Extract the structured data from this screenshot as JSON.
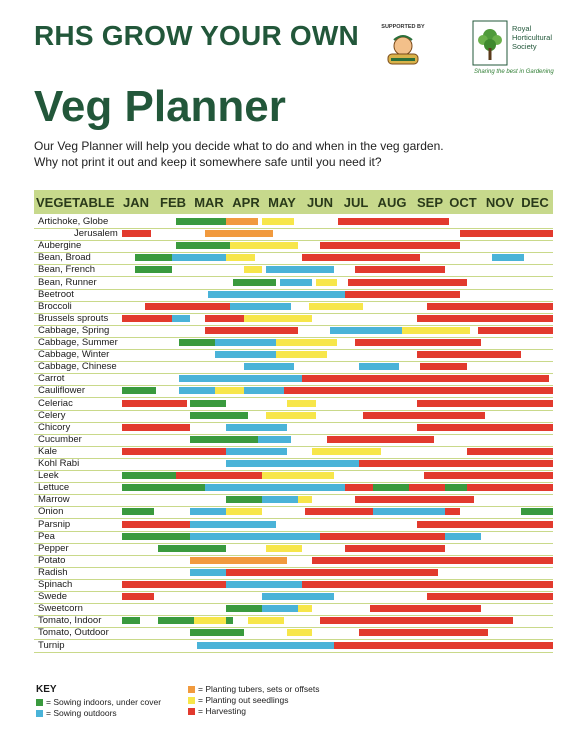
{
  "header": {
    "title": "RHS GROW YOUR OWN",
    "supported_by": "SUPPORTED BY",
    "rhs_name": [
      "Royal",
      "Horticultural",
      "Society"
    ],
    "rhs_tagline": "Sharing the best in Gardening"
  },
  "page": {
    "title": "Veg Planner",
    "intro_1": "Our Veg Planner will help you decide what to do and when in the veg garden.",
    "intro_2": "Why not print it out and keep it somewhere safe until you need it?"
  },
  "table": {
    "vegetable_header": "VEGETABLE",
    "months": [
      "JAN",
      "FEB",
      "MAR",
      "APR",
      "MAY",
      "JUN",
      "JUL",
      "AUG",
      "SEP",
      "OCT",
      "NOV",
      "DEC"
    ],
    "activity_colors": {
      "sow_indoors": "#3a9a3e",
      "sow_outdoors": "#4ab3d8",
      "planting_tubers": "#f19a3e",
      "planting_out": "#f7e64a",
      "harvest": "#e23a2e"
    },
    "rows": [
      {
        "name": "Artichoke, Globe",
        "bars": [
          [
            "sow_indoors",
            1.5,
            2.9
          ],
          [
            "planting_tubers",
            2.9,
            3.8
          ],
          [
            "planting_out",
            3.9,
            4.8
          ],
          [
            "harvest",
            6.0,
            9.1
          ]
        ]
      },
      {
        "name": "Jerusalem",
        "indent": true,
        "bars": [
          [
            "harvest",
            0,
            0.8
          ],
          [
            "planting_tubers",
            2.3,
            4.2
          ],
          [
            "harvest",
            9.4,
            12
          ]
        ]
      },
      {
        "name": "Aubergine",
        "bars": [
          [
            "sow_indoors",
            1.5,
            3.0
          ],
          [
            "planting_out",
            3.0,
            4.9
          ],
          [
            "harvest",
            5.5,
            9.4
          ]
        ]
      },
      {
        "name": "Bean, Broad",
        "bars": [
          [
            "sow_indoors",
            0.35,
            1.4
          ],
          [
            "sow_outdoors",
            1.4,
            2.9
          ],
          [
            "planting_out",
            2.9,
            3.7
          ],
          [
            "harvest",
            5.0,
            8.3
          ],
          [
            "sow_outdoors",
            10.3,
            11.2
          ]
        ]
      },
      {
        "name": "Bean, French",
        "bars": [
          [
            "sow_indoors",
            0.35,
            1.4
          ],
          [
            "planting_out",
            3.4,
            3.9
          ],
          [
            "sow_outdoors",
            4.0,
            5.9
          ],
          [
            "harvest",
            6.5,
            9.0
          ]
        ]
      },
      {
        "name": "Bean, Runner",
        "bars": [
          [
            "sow_indoors",
            3.1,
            4.3
          ],
          [
            "sow_outdoors",
            4.4,
            5.3
          ],
          [
            "planting_out",
            5.4,
            6.0
          ],
          [
            "harvest",
            6.3,
            9.6
          ]
        ]
      },
      {
        "name": "Beetroot",
        "bars": [
          [
            "sow_outdoors",
            2.4,
            6.2
          ],
          [
            "harvest",
            6.2,
            9.4
          ]
        ]
      },
      {
        "name": "Broccoli",
        "bars": [
          [
            "harvest",
            0.65,
            3.0
          ],
          [
            "sow_outdoors",
            3.0,
            4.7
          ],
          [
            "planting_out",
            5.2,
            6.7
          ],
          [
            "harvest",
            8.5,
            12
          ]
        ]
      },
      {
        "name": "Brussels sprouts",
        "bars": [
          [
            "harvest",
            0,
            1.4
          ],
          [
            "sow_outdoors",
            1.4,
            1.9
          ],
          [
            "harvest",
            2.3,
            3.4
          ],
          [
            "planting_out",
            3.4,
            5.3
          ],
          [
            "harvest",
            8.2,
            12
          ]
        ]
      },
      {
        "name": "Cabbage, Spring",
        "bars": [
          [
            "harvest",
            2.3,
            4.9
          ],
          [
            "sow_outdoors",
            5.8,
            7.8
          ],
          [
            "planting_out",
            7.8,
            9.7
          ],
          [
            "harvest",
            9.9,
            12
          ]
        ]
      },
      {
        "name": "Cabbage, Summer",
        "bars": [
          [
            "sow_indoors",
            1.6,
            2.6
          ],
          [
            "sow_outdoors",
            2.6,
            4.3
          ],
          [
            "planting_out",
            4.3,
            6.0
          ],
          [
            "harvest",
            6.5,
            10.0
          ]
        ]
      },
      {
        "name": "Cabbage, Winter",
        "bars": [
          [
            "sow_outdoors",
            2.6,
            4.3
          ],
          [
            "planting_out",
            4.3,
            5.7
          ],
          [
            "harvest",
            8.2,
            11.1
          ]
        ]
      },
      {
        "name": "Cabbage, Chinese",
        "bars": [
          [
            "sow_outdoors",
            3.4,
            4.8
          ],
          [
            "sow_outdoors",
            6.6,
            7.7
          ],
          [
            "harvest",
            8.3,
            9.6
          ]
        ]
      },
      {
        "name": "Carrot",
        "bars": [
          [
            "sow_outdoors",
            1.6,
            5.0
          ],
          [
            "sow_outdoors",
            5.0,
            6.0
          ],
          [
            "harvest",
            5.0,
            11.9
          ]
        ]
      },
      {
        "name": "Cauliflower",
        "bars": [
          [
            "sow_indoors",
            0,
            0.95
          ],
          [
            "sow_outdoors",
            1.6,
            2.6
          ],
          [
            "planting_out",
            2.6,
            3.4
          ],
          [
            "sow_outdoors",
            3.4,
            4.5
          ],
          [
            "harvest",
            4.5,
            12
          ]
        ]
      },
      {
        "name": "Celeriac",
        "bars": [
          [
            "harvest",
            0,
            1.8
          ],
          [
            "sow_indoors",
            1.9,
            2.9
          ],
          [
            "planting_out",
            4.6,
            5.4
          ],
          [
            "harvest",
            8.2,
            12
          ]
        ]
      },
      {
        "name": "Celery",
        "bars": [
          [
            "sow_indoors",
            1.9,
            3.5
          ],
          [
            "planting_out",
            4.0,
            5.4
          ],
          [
            "harvest",
            6.7,
            10.1
          ]
        ]
      },
      {
        "name": "Chicory",
        "bars": [
          [
            "harvest",
            0,
            1.9
          ],
          [
            "sow_outdoors",
            2.9,
            4.6
          ],
          [
            "harvest",
            8.2,
            12
          ]
        ]
      },
      {
        "name": "Cucumber",
        "bars": [
          [
            "sow_indoors",
            1.9,
            3.8
          ],
          [
            "sow_outdoors",
            3.8,
            4.7
          ],
          [
            "harvest",
            5.7,
            8.7
          ]
        ]
      },
      {
        "name": "Kale",
        "bars": [
          [
            "harvest",
            0,
            2.9
          ],
          [
            "sow_outdoors",
            2.9,
            4.6
          ],
          [
            "planting_out",
            5.3,
            7.2
          ],
          [
            "harvest",
            9.6,
            12
          ]
        ]
      },
      {
        "name": "Kohl Rabi",
        "bars": [
          [
            "sow_outdoors",
            2.9,
            6.6
          ],
          [
            "harvest",
            6.6,
            12
          ]
        ]
      },
      {
        "name": "Leek",
        "bars": [
          [
            "harvest",
            0,
            4.3
          ],
          [
            "sow_indoors",
            0,
            1.5
          ],
          [
            "planting_out",
            3.9,
            5.9
          ],
          [
            "harvest",
            8.4,
            12
          ]
        ]
      },
      {
        "name": "Lettuce",
        "bars": [
          [
            "harvest",
            0,
            12
          ],
          [
            "sow_indoors",
            0,
            2.3
          ],
          [
            "sow_outdoors",
            2.3,
            6.2
          ],
          [
            "sow_indoors",
            7.0,
            8.0
          ],
          [
            "sow_indoors",
            9.0,
            9.6
          ]
        ]
      },
      {
        "name": "Marrow",
        "bars": [
          [
            "sow_indoors",
            2.9,
            3.9
          ],
          [
            "sow_outdoors",
            3.9,
            4.9
          ],
          [
            "planting_out",
            4.9,
            5.3
          ],
          [
            "harvest",
            6.5,
            9.8
          ]
        ]
      },
      {
        "name": "Onion",
        "bars": [
          [
            "sow_indoors",
            0,
            0.9
          ],
          [
            "sow_outdoors",
            1.9,
            2.9
          ],
          [
            "planting_out",
            2.9,
            3.9
          ],
          [
            "harvest",
            5.1,
            9.4
          ],
          [
            "sow_outdoors",
            7.0,
            9.0
          ],
          [
            "sow_indoors",
            11.1,
            12
          ]
        ]
      },
      {
        "name": "Parsnip",
        "bars": [
          [
            "harvest",
            0,
            1.9
          ],
          [
            "sow_outdoors",
            1.9,
            4.3
          ],
          [
            "harvest",
            8.2,
            12
          ]
        ]
      },
      {
        "name": "Pea",
        "bars": [
          [
            "sow_indoors",
            0,
            1.9
          ],
          [
            "sow_outdoors",
            1.9,
            5.5
          ],
          [
            "harvest",
            5.5,
            9.0
          ],
          [
            "sow_outdoors",
            9.0,
            10.0
          ]
        ]
      },
      {
        "name": "Pepper",
        "bars": [
          [
            "sow_indoors",
            1.0,
            2.9
          ],
          [
            "planting_out",
            4.0,
            5.0
          ],
          [
            "harvest",
            6.2,
            9.0
          ]
        ]
      },
      {
        "name": "Potato",
        "bars": [
          [
            "planting_tubers",
            1.9,
            4.6
          ],
          [
            "harvest",
            5.3,
            12
          ]
        ]
      },
      {
        "name": "Radish",
        "bars": [
          [
            "sow_outdoors",
            1.9,
            7.9
          ],
          [
            "harvest",
            2.9,
            8.8
          ]
        ]
      },
      {
        "name": "Spinach",
        "bars": [
          [
            "harvest",
            0,
            12
          ],
          [
            "sow_outdoors",
            2.9,
            5.0
          ]
        ]
      },
      {
        "name": "Swede",
        "bars": [
          [
            "harvest",
            0,
            0.9
          ],
          [
            "sow_outdoors",
            3.9,
            5.9
          ],
          [
            "harvest",
            8.5,
            12
          ]
        ]
      },
      {
        "name": "Sweetcorn",
        "bars": [
          [
            "sow_indoors",
            2.9,
            3.9
          ],
          [
            "sow_outdoors",
            3.9,
            4.9
          ],
          [
            "planting_out",
            4.9,
            5.3
          ],
          [
            "harvest",
            6.9,
            10.0
          ]
        ]
      },
      {
        "name": "Tomato, Indoor",
        "bars": [
          [
            "sow_indoors",
            0,
            0.5
          ],
          [
            "sow_indoors",
            1.0,
            3.1
          ],
          [
            "planting_out",
            2.0,
            2.9
          ],
          [
            "planting_out",
            3.5,
            4.5
          ],
          [
            "harvest",
            5.5,
            10.9
          ]
        ]
      },
      {
        "name": "Tomato, Outdoor",
        "bars": [
          [
            "sow_indoors",
            1.9,
            3.4
          ],
          [
            "planting_out",
            4.6,
            5.3
          ],
          [
            "harvest",
            6.6,
            10.2
          ]
        ]
      },
      {
        "name": "Turnip",
        "bars": [
          [
            "sow_outdoors",
            2.1,
            5.9
          ],
          [
            "harvest",
            5.9,
            12
          ]
        ]
      }
    ]
  },
  "key": {
    "title": "KEY",
    "sow_indoors": "= Sowing indoors, under cover",
    "sow_outdoors": "= Sowing outdoors",
    "planting_tubers": "= Planting tubers, sets or offsets",
    "planting_out": "= Planting out seedlings",
    "harvest": "= Harvesting"
  }
}
